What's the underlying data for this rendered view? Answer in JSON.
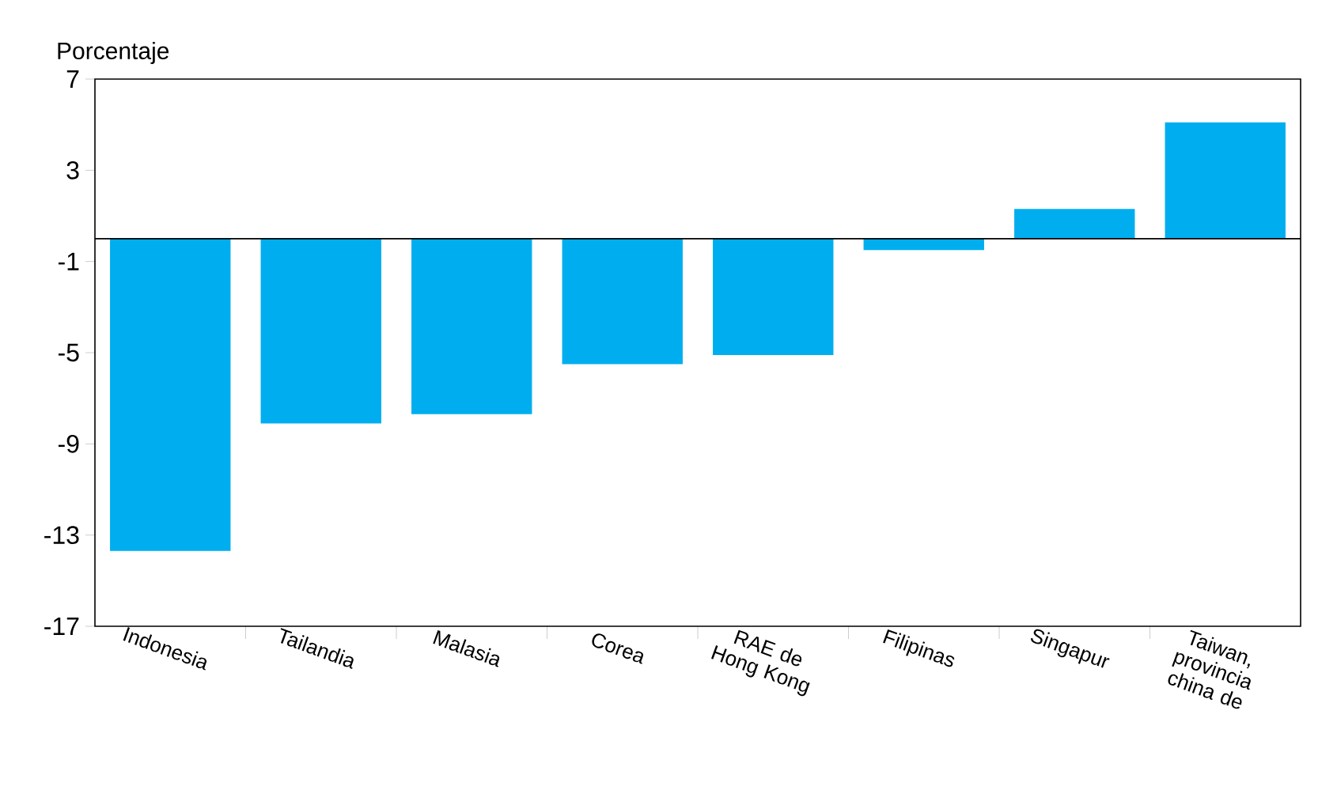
{
  "chart_data": {
    "type": "bar",
    "ylabel": "Porcentaje",
    "categories": [
      "Indonesia",
      "Tailandia",
      "Malasia",
      "Corea",
      "RAE de Hong Kong",
      "Filipinas",
      "Singapur",
      "Taiwan, provincia china de"
    ],
    "values": [
      -13.7,
      -8.1,
      -7.7,
      -5.5,
      -5.1,
      -0.5,
      1.3,
      5.1
    ],
    "color": "#00aeef",
    "ylim": [
      -17,
      7
    ],
    "yticks": [
      -17,
      -13,
      -9,
      -5,
      -1,
      3,
      7
    ],
    "ref_lines": [
      {
        "axis": "y",
        "value": 0
      }
    ]
  }
}
